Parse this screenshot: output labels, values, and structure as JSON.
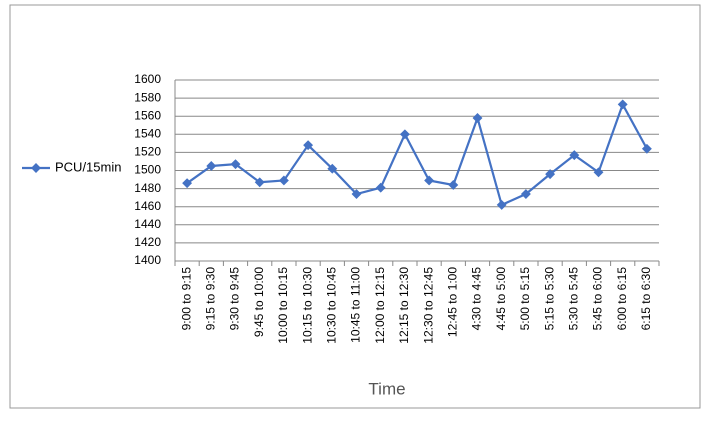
{
  "chart_data": {
    "type": "line",
    "categories": [
      "9:00 to 9:15",
      "9:15 to 9:30",
      "9:30 to 9:45",
      "9:45 to 10:00",
      "10:00 to 10:15",
      "10:15 to 10:30",
      "10:30 to 10:45",
      "10:45 to 11:00",
      "12:00 to 12:15",
      "12:15 to 12:30",
      "12:30 to 12:45",
      "12:45 to 1:00",
      "4:30 to 4:45",
      "4:45 to 5:00",
      "5:00 to 5:15",
      "5:15 to 5:30",
      "5:30 to 5:45",
      "5:45 to 6:00",
      "6:00 to 6:15",
      "6:15 to 6:30"
    ],
    "series": [
      {
        "name": "PCU/15min",
        "color": "#4472c4",
        "values": [
          1486,
          1505,
          1507,
          1487,
          1489,
          1528,
          1502,
          1474,
          1481,
          1540,
          1489,
          1484,
          1558,
          1462,
          1474,
          1496,
          1517,
          1498,
          1573,
          1524
        ]
      }
    ],
    "x_label": "Time",
    "ylim": [
      1400,
      1600
    ],
    "yticks": [
      1400,
      1420,
      1440,
      1460,
      1480,
      1500,
      1520,
      1540,
      1560,
      1580,
      1600
    ],
    "grid": true,
    "legend": "left"
  }
}
